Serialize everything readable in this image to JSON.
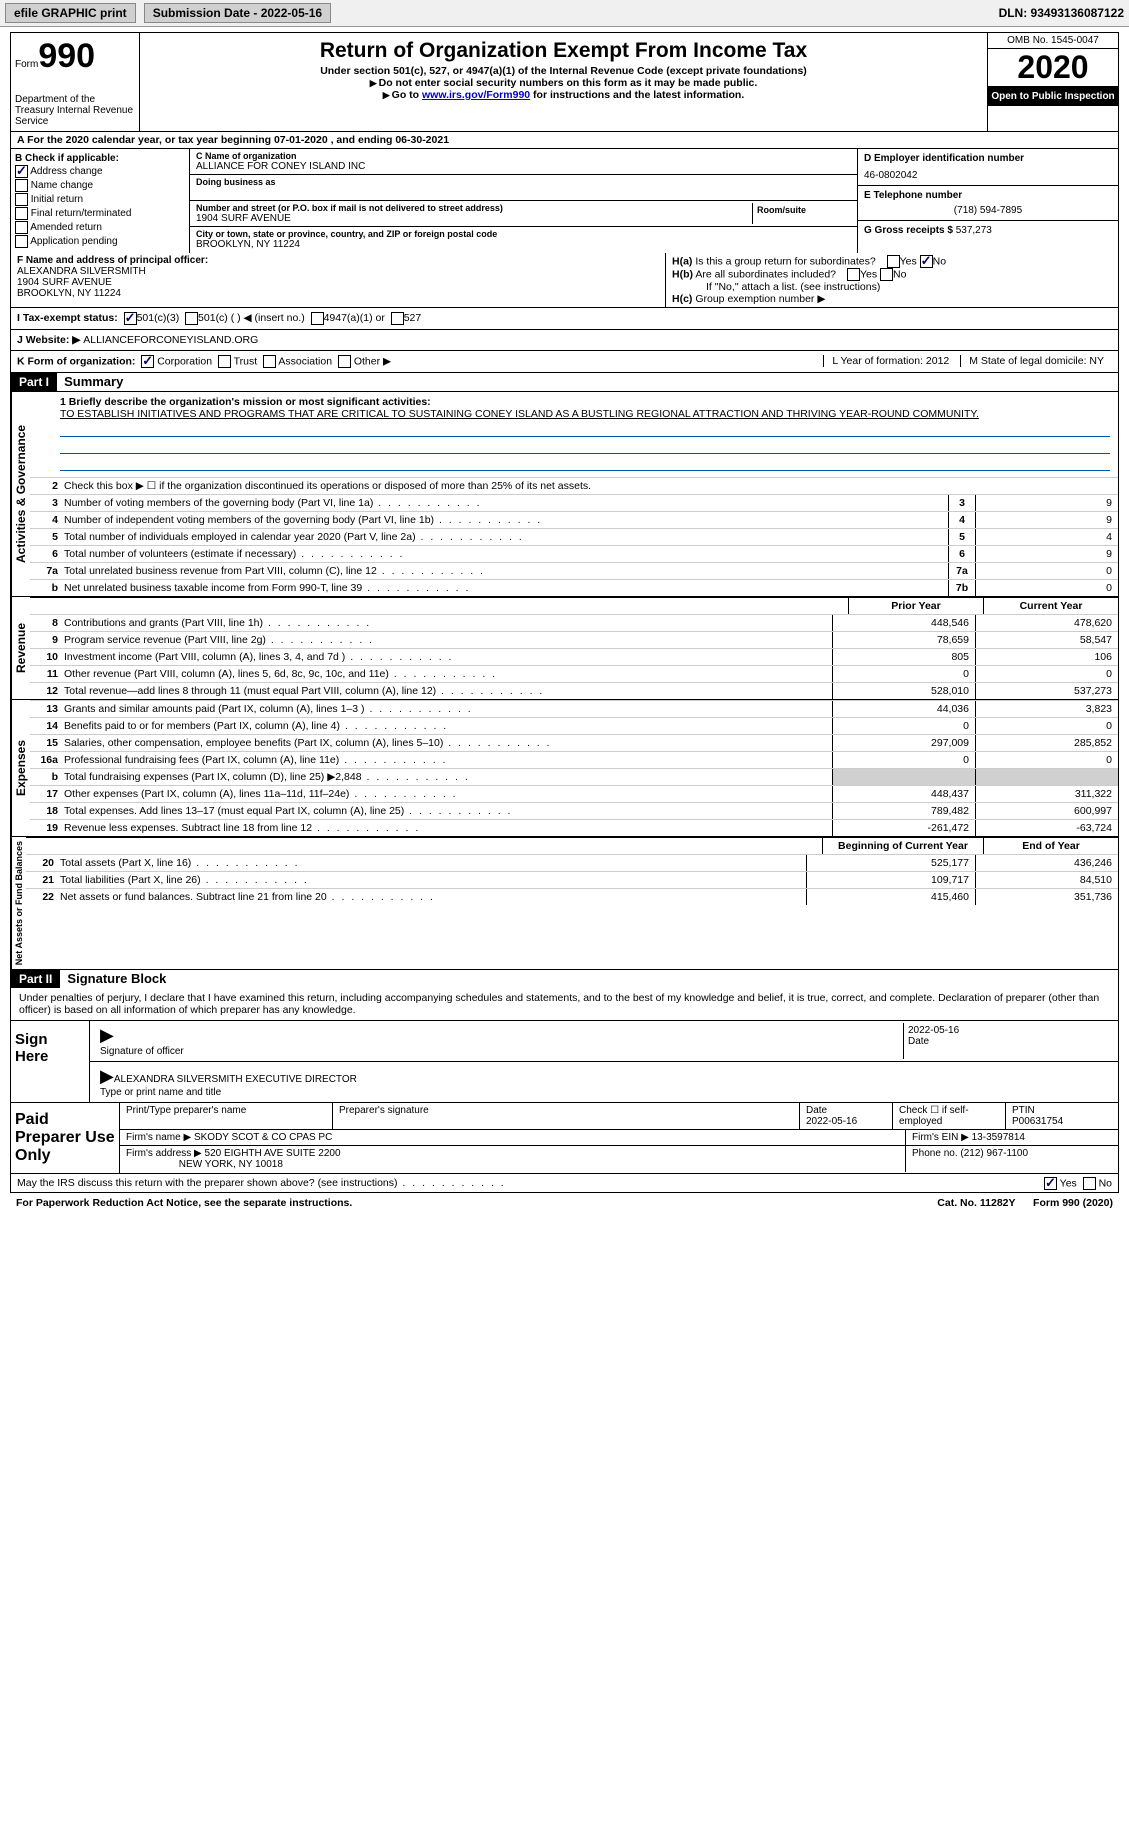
{
  "toolbar": {
    "efile": "efile GRAPHIC print",
    "submission": "Submission Date - 2022-05-16",
    "dln": "DLN: 93493136087122"
  },
  "header": {
    "form_label": "Form",
    "form_num": "990",
    "dept": "Department of the Treasury\nInternal Revenue Service",
    "title": "Return of Organization Exempt From Income Tax",
    "subtitle": "Under section 501(c), 527, or 4947(a)(1) of the Internal Revenue Code (except private foundations)",
    "note1": "Do not enter social security numbers on this form as it may be made public.",
    "note2_pre": "Go to ",
    "note2_link": "www.irs.gov/Form990",
    "note2_post": " for instructions and the latest information.",
    "omb": "OMB No. 1545-0047",
    "year": "2020",
    "inspection": "Open to Public Inspection"
  },
  "period": "A For the 2020 calendar year, or tax year beginning 07-01-2020    , and ending 06-30-2021",
  "section_b": {
    "title": "B Check if applicable:",
    "items": [
      "Address change",
      "Name change",
      "Initial return",
      "Final return/terminated",
      "Amended return",
      "Application pending"
    ],
    "checked_idx": 0
  },
  "section_c": {
    "name_label": "C Name of organization",
    "name": "ALLIANCE FOR CONEY ISLAND INC",
    "dba_label": "Doing business as",
    "addr_label": "Number and street (or P.O. box if mail is not delivered to street address)",
    "room_label": "Room/suite",
    "addr": "1904 SURF AVENUE",
    "city_label": "City or town, state or province, country, and ZIP or foreign postal code",
    "city": "BROOKLYN, NY  11224"
  },
  "section_d": {
    "ein_label": "D Employer identification number",
    "ein": "46-0802042",
    "phone_label": "E Telephone number",
    "phone": "(718) 594-7895",
    "gross_label": "G Gross receipts $",
    "gross": "537,273"
  },
  "section_f": {
    "label": "F Name and address of principal officer:",
    "name": "ALEXANDRA SILVERSMITH",
    "addr1": "1904 SURF AVENUE",
    "addr2": "BROOKLYN, NY  11224"
  },
  "section_h": {
    "ha": "Is this a group return for subordinates?",
    "hb": "Are all subordinates included?",
    "hnote": "If \"No,\" attach a list. (see instructions)",
    "hc": "Group exemption number ▶",
    "ha_no_checked": true
  },
  "section_i": {
    "label": "I    Tax-exempt status:",
    "opts": [
      "501(c)(3)",
      "501(c) (  ) ◀ (insert no.)",
      "4947(a)(1) or",
      "527"
    ],
    "checked_idx": 0
  },
  "section_j": {
    "label": "J    Website: ▶",
    "val": "ALLIANCEFORCONEYISLAND.ORG"
  },
  "section_k": {
    "label": "K Form of organization:",
    "opts": [
      "Corporation",
      "Trust",
      "Association",
      "Other ▶"
    ],
    "checked_idx": 0,
    "l": "L Year of formation: 2012",
    "m": "M State of legal domicile: NY"
  },
  "part1": {
    "tag": "Part I",
    "title": "Summary",
    "mission_label": "1  Briefly describe the organization's mission or most significant activities:",
    "mission": "TO ESTABLISH INITIATIVES AND PROGRAMS THAT ARE CRITICAL TO SUSTAINING CONEY ISLAND AS A BUSTLING REGIONAL ATTRACTION AND THRIVING YEAR-ROUND COMMUNITY.",
    "line2": "Check this box ▶ ☐  if the organization discontinued its operations or disposed of more than 25% of its net assets.",
    "gov_lines": [
      {
        "n": "3",
        "d": "Number of voting members of the governing body (Part VI, line 1a)",
        "b": "3",
        "v": "9"
      },
      {
        "n": "4",
        "d": "Number of independent voting members of the governing body (Part VI, line 1b)",
        "b": "4",
        "v": "9"
      },
      {
        "n": "5",
        "d": "Total number of individuals employed in calendar year 2020 (Part V, line 2a)",
        "b": "5",
        "v": "4"
      },
      {
        "n": "6",
        "d": "Total number of volunteers (estimate if necessary)",
        "b": "6",
        "v": "9"
      },
      {
        "n": "7a",
        "d": "Total unrelated business revenue from Part VIII, column (C), line 12",
        "b": "7a",
        "v": "0"
      },
      {
        "n": "b",
        "d": "Net unrelated business taxable income from Form 990-T, line 39",
        "b": "7b",
        "v": "0"
      }
    ],
    "prior_h": "Prior Year",
    "curr_h": "Current Year",
    "rev_lines": [
      {
        "n": "8",
        "d": "Contributions and grants (Part VIII, line 1h)",
        "p": "448,546",
        "c": "478,620"
      },
      {
        "n": "9",
        "d": "Program service revenue (Part VIII, line 2g)",
        "p": "78,659",
        "c": "58,547"
      },
      {
        "n": "10",
        "d": "Investment income (Part VIII, column (A), lines 3, 4, and 7d )",
        "p": "805",
        "c": "106"
      },
      {
        "n": "11",
        "d": "Other revenue (Part VIII, column (A), lines 5, 6d, 8c, 9c, 10c, and 11e)",
        "p": "0",
        "c": "0"
      },
      {
        "n": "12",
        "d": "Total revenue—add lines 8 through 11 (must equal Part VIII, column (A), line 12)",
        "p": "528,010",
        "c": "537,273"
      }
    ],
    "exp_lines": [
      {
        "n": "13",
        "d": "Grants and similar amounts paid (Part IX, column (A), lines 1–3 )",
        "p": "44,036",
        "c": "3,823"
      },
      {
        "n": "14",
        "d": "Benefits paid to or for members (Part IX, column (A), line 4)",
        "p": "0",
        "c": "0"
      },
      {
        "n": "15",
        "d": "Salaries, other compensation, employee benefits (Part IX, column (A), lines 5–10)",
        "p": "297,009",
        "c": "285,852"
      },
      {
        "n": "16a",
        "d": "Professional fundraising fees (Part IX, column (A), line 11e)",
        "p": "0",
        "c": "0"
      },
      {
        "n": "b",
        "d": "Total fundraising expenses (Part IX, column (D), line 25) ▶2,848",
        "p": "",
        "c": "",
        "shaded": true
      },
      {
        "n": "17",
        "d": "Other expenses (Part IX, column (A), lines 11a–11d, 11f–24e)",
        "p": "448,437",
        "c": "311,322"
      },
      {
        "n": "18",
        "d": "Total expenses. Add lines 13–17 (must equal Part IX, column (A), line 25)",
        "p": "789,482",
        "c": "600,997"
      },
      {
        "n": "19",
        "d": "Revenue less expenses. Subtract line 18 from line 12",
        "p": "-261,472",
        "c": "-63,724"
      }
    ],
    "na_h1": "Beginning of Current Year",
    "na_h2": "End of Year",
    "na_lines": [
      {
        "n": "20",
        "d": "Total assets (Part X, line 16)",
        "p": "525,177",
        "c": "436,246"
      },
      {
        "n": "21",
        "d": "Total liabilities (Part X, line 26)",
        "p": "109,717",
        "c": "84,510"
      },
      {
        "n": "22",
        "d": "Net assets or fund balances. Subtract line 21 from line 20",
        "p": "415,460",
        "c": "351,736"
      }
    ],
    "vlabels": {
      "gov": "Activities & Governance",
      "rev": "Revenue",
      "exp": "Expenses",
      "na": "Net Assets or Fund Balances"
    }
  },
  "part2": {
    "tag": "Part II",
    "title": "Signature Block",
    "decl": "Under penalties of perjury, I declare that I have examined this return, including accompanying schedules and statements, and to the best of my knowledge and belief, it is true, correct, and complete. Declaration of preparer (other than officer) is based on all information of which preparer has any knowledge.",
    "sign_here": "Sign Here",
    "sig_officer": "Signature of officer",
    "sig_date": "2022-05-16",
    "date_lab": "Date",
    "typed_name": "ALEXANDRA SILVERSMITH  EXECUTIVE DIRECTOR",
    "typed_lab": "Type or print name and title",
    "paid_label": "Paid Preparer Use Only",
    "prep_name_h": "Print/Type preparer's name",
    "prep_sig_h": "Preparer's signature",
    "prep_date_h": "Date",
    "prep_date": "2022-05-16",
    "prep_check": "Check ☐ if self-employed",
    "ptin_h": "PTIN",
    "ptin": "P00631754",
    "firm_name_l": "Firm's name    ▶",
    "firm_name": "SKODY SCOT & CO CPAS PC",
    "firm_ein_l": "Firm's EIN ▶",
    "firm_ein": "13-3597814",
    "firm_addr_l": "Firm's address ▶",
    "firm_addr": "520 EIGHTH AVE SUITE 2200",
    "firm_city": "NEW YORK, NY  10018",
    "phone_l": "Phone no.",
    "phone": "(212) 967-1100",
    "discuss": "May the IRS discuss this return with the preparer shown above? (see instructions)",
    "discuss_yes": true
  },
  "footer": {
    "left": "For Paperwork Reduction Act Notice, see the separate instructions.",
    "cat": "Cat. No. 11282Y",
    "right": "Form 990 (2020)"
  }
}
